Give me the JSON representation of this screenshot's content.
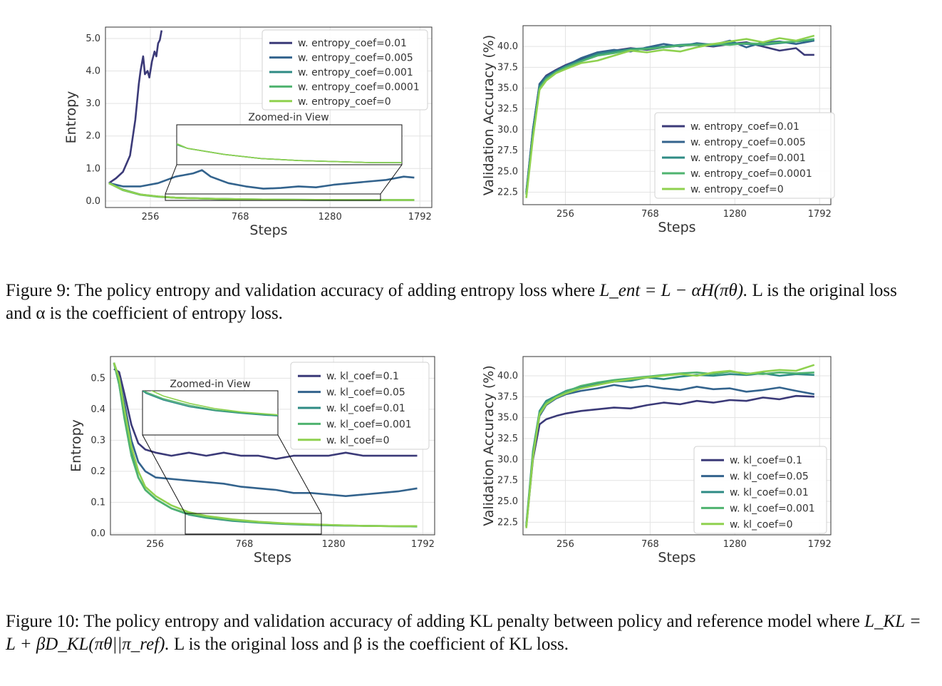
{
  "colors": {
    "series": [
      "#3b3a78",
      "#33638d",
      "#2e8b84",
      "#4fb36f",
      "#8fd14f"
    ],
    "grid": "#e3e3e3",
    "axis": "#333333"
  },
  "fig9": {
    "caption_prefix": "Figure 9:",
    "caption_text": "The policy entropy and validation accuracy of adding entropy loss where",
    "caption_eq": "L_ent = L − αH(πθ).",
    "caption_rest": "L is the original loss and α is the coefficient of entropy loss."
  },
  "fig10": {
    "caption_prefix": "Figure 10:",
    "caption_text": "The policy entropy and validation accuracy of adding KL penalty between policy and reference model where",
    "caption_eq": "L_KL = L + βD_KL(πθ||π_ref).",
    "caption_rest": "L is the original loss and β is the coefficient of KL loss."
  },
  "chart_data": [
    {
      "id": "fig9-entropy",
      "type": "line",
      "xlabel": "Steps",
      "ylabel": "Entropy",
      "xticks": [
        256,
        768,
        1280,
        1792
      ],
      "yticks": [
        0.0,
        1.0,
        2.0,
        3.0,
        4.0,
        5.0
      ],
      "ytick_labels": [
        "0.0",
        "1.0",
        "2.0",
        "3.0",
        "4.0",
        "5.0"
      ],
      "xlim": [
        0,
        1860
      ],
      "ylim": [
        -0.2,
        5.35
      ],
      "grid": true,
      "legend_position": "top-right",
      "inset_label": "Zoomed-in View",
      "series": [
        {
          "name": "w. entropy_coef=0.01",
          "x": [
            20,
            60,
            100,
            140,
            170,
            190,
            200,
            215,
            225,
            240,
            250,
            265,
            280,
            290,
            300,
            310,
            320
          ],
          "y": [
            0.55,
            0.7,
            0.9,
            1.4,
            2.5,
            3.6,
            4.0,
            4.45,
            3.9,
            4.0,
            3.8,
            4.3,
            4.6,
            4.45,
            4.85,
            4.95,
            5.25
          ]
        },
        {
          "name": "w. entropy_coef=0.005",
          "x": [
            20,
            100,
            200,
            300,
            400,
            500,
            550,
            600,
            700,
            800,
            900,
            1000,
            1100,
            1200,
            1300,
            1400,
            1500,
            1600,
            1700,
            1760
          ],
          "y": [
            0.55,
            0.45,
            0.45,
            0.55,
            0.75,
            0.85,
            0.95,
            0.75,
            0.55,
            0.45,
            0.38,
            0.4,
            0.45,
            0.42,
            0.5,
            0.55,
            0.6,
            0.65,
            0.75,
            0.72
          ]
        },
        {
          "name": "w. entropy_coef=0.001",
          "x": [
            20,
            100,
            200,
            300,
            400,
            600,
            800,
            1000,
            1200,
            1400,
            1600,
            1760
          ],
          "y": [
            0.55,
            0.35,
            0.2,
            0.14,
            0.1,
            0.07,
            0.05,
            0.04,
            0.035,
            0.03,
            0.03,
            0.03
          ]
        },
        {
          "name": "w. entropy_coef=0.0001",
          "x": [
            20,
            100,
            200,
            300,
            400,
            600,
            800,
            1000,
            1200,
            1400,
            1600,
            1760
          ],
          "y": [
            0.55,
            0.33,
            0.19,
            0.13,
            0.1,
            0.07,
            0.05,
            0.04,
            0.035,
            0.03,
            0.03,
            0.03
          ]
        },
        {
          "name": "w. entropy_coef=0",
          "x": [
            20,
            100,
            200,
            300,
            400,
            600,
            800,
            1000,
            1200,
            1400,
            1600,
            1760
          ],
          "y": [
            0.55,
            0.34,
            0.2,
            0.14,
            0.1,
            0.07,
            0.05,
            0.04,
            0.035,
            0.03,
            0.03,
            0.03
          ]
        }
      ]
    },
    {
      "id": "fig9-accuracy",
      "type": "line",
      "xlabel": "Steps",
      "ylabel": "Validation Accuracy (%)",
      "xticks": [
        256,
        768,
        1280,
        1792
      ],
      "yticks": [
        22.5,
        25.0,
        27.5,
        30.0,
        32.5,
        35.0,
        37.5,
        40.0
      ],
      "ytick_labels": [
        "22.5",
        "25.0",
        "27.5",
        "30.0",
        "32.5",
        "35.0",
        "37.5",
        "40.0"
      ],
      "xlim": [
        0,
        1860
      ],
      "ylim": [
        21.0,
        42.5
      ],
      "grid": true,
      "legend_position": "lower right",
      "series": [
        {
          "name": "w. entropy_coef=0.01",
          "x": [
            20,
            60,
            100,
            140,
            200,
            260,
            350,
            450,
            550,
            650,
            750,
            850,
            950,
            1050,
            1150,
            1250,
            1350,
            1450,
            1550,
            1650,
            1700,
            1760
          ],
          "y": [
            22.5,
            30,
            35.5,
            36.5,
            37.2,
            37.8,
            38.5,
            39.2,
            39.5,
            39.8,
            39.6,
            39.9,
            40.1,
            40.2,
            40.0,
            40.3,
            40.5,
            40.0,
            39.5,
            39.8,
            39.0,
            39.0
          ]
        },
        {
          "name": "w. entropy_coef=0.005",
          "x": [
            20,
            60,
            100,
            140,
            200,
            260,
            350,
            450,
            550,
            650,
            750,
            850,
            950,
            1050,
            1150,
            1250,
            1350,
            1450,
            1550,
            1650,
            1760
          ],
          "y": [
            22.5,
            30,
            35.5,
            36.4,
            37.1,
            37.7,
            38.6,
            39.3,
            39.6,
            39.4,
            39.9,
            40.3,
            40.0,
            40.4,
            40.2,
            40.7,
            39.9,
            40.5,
            40.6,
            40.3,
            40.7
          ]
        },
        {
          "name": "w. entropy_coef=0.001",
          "x": [
            20,
            60,
            100,
            140,
            200,
            260,
            350,
            450,
            550,
            650,
            750,
            850,
            950,
            1050,
            1150,
            1250,
            1350,
            1450,
            1550,
            1650,
            1760
          ],
          "y": [
            22.3,
            29.5,
            35.2,
            36.2,
            37.0,
            37.6,
            38.3,
            39.1,
            39.4,
            39.7,
            39.8,
            40.0,
            40.2,
            40.3,
            40.1,
            40.4,
            40.3,
            40.2,
            40.4,
            40.6,
            40.8
          ]
        },
        {
          "name": "w. entropy_coef=0.0001",
          "x": [
            20,
            60,
            100,
            140,
            200,
            260,
            350,
            450,
            550,
            650,
            750,
            850,
            950,
            1050,
            1150,
            1250,
            1350,
            1450,
            1550,
            1650,
            1760
          ],
          "y": [
            22.2,
            29.3,
            35.0,
            36.1,
            36.9,
            37.5,
            38.2,
            38.9,
            39.2,
            39.6,
            39.7,
            39.9,
            40.1,
            40.2,
            40.3,
            40.2,
            40.4,
            40.3,
            40.5,
            40.6,
            40.9
          ]
        },
        {
          "name": "w. entropy_coef=0",
          "x": [
            20,
            60,
            100,
            140,
            200,
            260,
            350,
            450,
            550,
            650,
            750,
            850,
            950,
            1050,
            1150,
            1250,
            1350,
            1450,
            1550,
            1650,
            1760
          ],
          "y": [
            21.8,
            29.0,
            34.8,
            35.9,
            36.8,
            37.3,
            38.0,
            38.3,
            38.9,
            39.5,
            39.3,
            39.6,
            39.4,
            39.9,
            40.3,
            40.6,
            40.9,
            40.5,
            41.0,
            40.7,
            41.3
          ]
        }
      ]
    },
    {
      "id": "fig10-entropy",
      "type": "line",
      "xlabel": "Steps",
      "ylabel": "Entropy",
      "xticks": [
        256,
        768,
        1280,
        1792
      ],
      "yticks": [
        0.0,
        0.1,
        0.2,
        0.3,
        0.4,
        0.5
      ],
      "ytick_labels": [
        "0.0",
        "0.1",
        "0.2",
        "0.3",
        "0.4",
        "0.5"
      ],
      "xlim": [
        0,
        1860
      ],
      "ylim": [
        -0.005,
        0.57
      ],
      "grid": true,
      "legend_position": "top-right",
      "inset_label": "Zoomed-in View",
      "series": [
        {
          "name": "w. kl_coef=0.1",
          "x": [
            20,
            50,
            80,
            120,
            160,
            200,
            260,
            350,
            450,
            550,
            650,
            750,
            850,
            950,
            1050,
            1150,
            1250,
            1350,
            1450,
            1550,
            1650,
            1760
          ],
          "y": [
            0.53,
            0.52,
            0.45,
            0.35,
            0.29,
            0.27,
            0.26,
            0.25,
            0.26,
            0.25,
            0.26,
            0.25,
            0.25,
            0.24,
            0.25,
            0.25,
            0.25,
            0.26,
            0.25,
            0.25,
            0.25,
            0.25
          ]
        },
        {
          "name": "w. kl_coef=0.05",
          "x": [
            20,
            50,
            80,
            120,
            160,
            200,
            260,
            350,
            450,
            550,
            650,
            750,
            850,
            950,
            1050,
            1150,
            1250,
            1350,
            1450,
            1550,
            1650,
            1760
          ],
          "y": [
            0.55,
            0.5,
            0.42,
            0.3,
            0.23,
            0.2,
            0.18,
            0.175,
            0.17,
            0.165,
            0.16,
            0.15,
            0.145,
            0.14,
            0.13,
            0.13,
            0.125,
            0.12,
            0.125,
            0.13,
            0.135,
            0.145
          ]
        },
        {
          "name": "w. kl_coef=0.01",
          "x": [
            20,
            50,
            80,
            120,
            160,
            200,
            260,
            350,
            450,
            550,
            700,
            850,
            1000,
            1150,
            1300,
            1450,
            1600,
            1760
          ],
          "y": [
            0.55,
            0.48,
            0.38,
            0.26,
            0.18,
            0.14,
            0.11,
            0.08,
            0.06,
            0.05,
            0.04,
            0.034,
            0.03,
            0.027,
            0.025,
            0.024,
            0.023,
            0.022
          ]
        },
        {
          "name": "w. kl_coef=0.001",
          "x": [
            20,
            50,
            80,
            120,
            160,
            200,
            260,
            350,
            450,
            550,
            700,
            850,
            1000,
            1150,
            1300,
            1450,
            1600,
            1760
          ],
          "y": [
            0.55,
            0.48,
            0.37,
            0.25,
            0.18,
            0.14,
            0.11,
            0.08,
            0.062,
            0.052,
            0.042,
            0.035,
            0.031,
            0.028,
            0.026,
            0.024,
            0.023,
            0.022
          ]
        },
        {
          "name": "w. kl_coef=0",
          "x": [
            20,
            50,
            80,
            120,
            160,
            200,
            260,
            350,
            450,
            550,
            700,
            850,
            1000,
            1150,
            1300,
            1450,
            1600,
            1760
          ],
          "y": [
            0.55,
            0.5,
            0.4,
            0.28,
            0.2,
            0.15,
            0.12,
            0.09,
            0.068,
            0.056,
            0.045,
            0.037,
            0.032,
            0.029,
            0.026,
            0.024,
            0.023,
            0.023
          ]
        }
      ]
    },
    {
      "id": "fig10-accuracy",
      "type": "line",
      "xlabel": "Steps",
      "ylabel": "Validation Accuracy (%)",
      "xticks": [
        256,
        768,
        1280,
        1792
      ],
      "yticks": [
        22.5,
        25.0,
        27.5,
        30.0,
        32.5,
        35.0,
        37.5,
        40.0
      ],
      "ytick_labels": [
        "22.5",
        "25.0",
        "27.5",
        "30.0",
        "32.5",
        "35.0",
        "37.5",
        "40.0"
      ],
      "xlim": [
        0,
        1860
      ],
      "ylim": [
        21.0,
        42.3
      ],
      "grid": true,
      "legend_position": "lower right",
      "series": [
        {
          "name": "w. kl_coef=0.1",
          "x": [
            20,
            60,
            100,
            140,
            200,
            260,
            350,
            450,
            550,
            650,
            750,
            850,
            950,
            1050,
            1150,
            1250,
            1350,
            1450,
            1550,
            1650,
            1760
          ],
          "y": [
            22.0,
            30.0,
            34.2,
            34.8,
            35.2,
            35.5,
            35.8,
            36.0,
            36.2,
            36.1,
            36.5,
            36.8,
            36.6,
            37.0,
            36.8,
            37.1,
            37.0,
            37.4,
            37.2,
            37.6,
            37.5
          ]
        },
        {
          "name": "w. kl_coef=0.05",
          "x": [
            20,
            60,
            100,
            140,
            200,
            260,
            350,
            450,
            550,
            650,
            750,
            850,
            950,
            1050,
            1150,
            1250,
            1350,
            1450,
            1550,
            1650,
            1760
          ],
          "y": [
            22.0,
            30.5,
            35.2,
            36.5,
            37.3,
            37.8,
            38.2,
            38.5,
            38.9,
            38.6,
            38.8,
            38.5,
            38.3,
            38.7,
            38.4,
            38.5,
            38.1,
            38.3,
            38.6,
            38.2,
            37.8
          ]
        },
        {
          "name": "w. kl_coef=0.01",
          "x": [
            20,
            60,
            100,
            140,
            200,
            260,
            350,
            450,
            550,
            650,
            750,
            850,
            950,
            1050,
            1150,
            1250,
            1350,
            1450,
            1550,
            1650,
            1760
          ],
          "y": [
            22.2,
            31.0,
            35.8,
            37.0,
            37.6,
            38.2,
            38.7,
            39.0,
            39.3,
            39.4,
            39.8,
            39.6,
            39.9,
            40.1,
            40.0,
            40.2,
            40.1,
            40.3,
            40.0,
            40.2,
            40.1
          ]
        },
        {
          "name": "w. kl_coef=0.001",
          "x": [
            20,
            60,
            100,
            140,
            200,
            260,
            350,
            450,
            550,
            650,
            750,
            850,
            950,
            1050,
            1150,
            1250,
            1350,
            1450,
            1550,
            1650,
            1760
          ],
          "y": [
            22.0,
            30.8,
            35.6,
            36.8,
            37.5,
            38.1,
            38.8,
            39.2,
            39.5,
            39.7,
            39.9,
            40.1,
            40.3,
            40.4,
            40.2,
            40.5,
            40.3,
            40.2,
            40.4,
            40.3,
            40.4
          ]
        },
        {
          "name": "w. kl_coef=0",
          "x": [
            20,
            60,
            100,
            140,
            200,
            260,
            350,
            450,
            550,
            650,
            750,
            850,
            950,
            1050,
            1150,
            1250,
            1350,
            1450,
            1550,
            1650,
            1760
          ],
          "y": [
            21.8,
            30.2,
            35.4,
            36.6,
            37.4,
            37.9,
            38.5,
            38.9,
            39.3,
            39.6,
            39.8,
            40.0,
            40.2,
            40.0,
            40.4,
            40.6,
            40.2,
            40.5,
            40.7,
            40.6,
            41.3
          ]
        }
      ]
    }
  ]
}
